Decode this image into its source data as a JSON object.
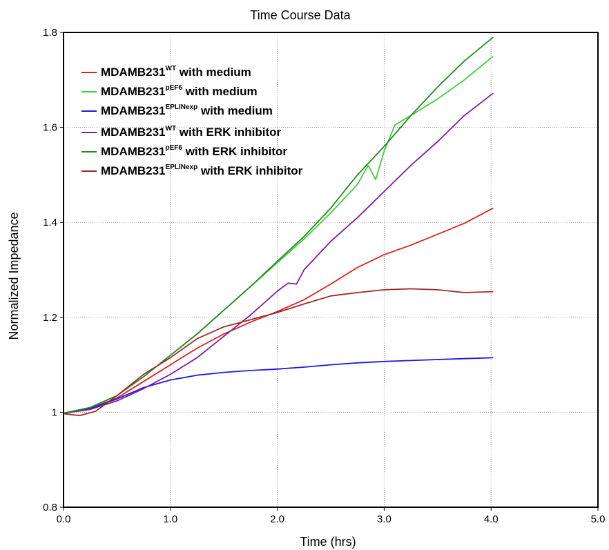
{
  "chart_data": {
    "type": "line",
    "title": "Time Course Data",
    "xlabel": "Time (hrs)",
    "ylabel": "Normalized Impedance",
    "xlim": [
      0.0,
      5.0
    ],
    "ylim": [
      0.8,
      1.8
    ],
    "xticks": [
      0.0,
      1.0,
      2.0,
      3.0,
      4.0,
      5.0
    ],
    "xtick_labels": [
      "0.0",
      "1.0",
      "2.0",
      "3.0",
      "4.0",
      "5.0"
    ],
    "yticks": [
      0.8,
      1.0,
      1.2,
      1.4,
      1.6,
      1.8
    ],
    "ytick_labels": [
      "0.8",
      "1",
      "1.2",
      "1.4",
      "1.6",
      "1.8"
    ],
    "grid": true,
    "legend_position": "top-left",
    "series": [
      {
        "name": "MDAMB231WT with medium",
        "legend": {
          "base": "MDAMB231",
          "sup": "WT",
          "rest": " with medium"
        },
        "color": "#e02020",
        "x": [
          0.0,
          0.25,
          0.5,
          0.75,
          1.0,
          1.25,
          1.5,
          1.75,
          2.0,
          2.25,
          2.5,
          2.75,
          3.0,
          3.25,
          3.5,
          3.75,
          4.02
        ],
        "y": [
          0.997,
          1.008,
          1.03,
          1.065,
          1.1,
          1.135,
          1.165,
          1.19,
          1.212,
          1.237,
          1.27,
          1.305,
          1.332,
          1.352,
          1.375,
          1.398,
          1.43
        ]
      },
      {
        "name": "MDAMB231pEF6 with medium",
        "legend": {
          "base": "MDAMB231",
          "sup": "pEF6",
          "rest": " with medium"
        },
        "color": "#3dce3d",
        "x": [
          0.0,
          0.25,
          0.5,
          0.75,
          1.0,
          1.25,
          1.5,
          1.75,
          2.0,
          2.25,
          2.5,
          2.75,
          2.85,
          2.92,
          3.0,
          3.1,
          3.25,
          3.5,
          3.75,
          4.02
        ],
        "y": [
          0.998,
          1.01,
          1.035,
          1.075,
          1.12,
          1.165,
          1.215,
          1.265,
          1.315,
          1.365,
          1.42,
          1.48,
          1.52,
          1.49,
          1.55,
          1.605,
          1.625,
          1.66,
          1.7,
          1.75
        ]
      },
      {
        "name": "MDAMB231EPLINexp with medium",
        "legend": {
          "base": "MDAMB231",
          "sup": "EPLINexp",
          "rest": " with medium"
        },
        "color": "#1a1ae0",
        "x": [
          0.0,
          0.25,
          0.5,
          0.75,
          1.0,
          1.25,
          1.5,
          1.75,
          2.0,
          2.25,
          2.5,
          2.75,
          3.0,
          3.25,
          3.5,
          3.75,
          4.02
        ],
        "y": [
          0.998,
          1.008,
          1.028,
          1.052,
          1.068,
          1.078,
          1.084,
          1.088,
          1.091,
          1.095,
          1.1,
          1.104,
          1.107,
          1.109,
          1.111,
          1.113,
          1.115
        ]
      },
      {
        "name": "MDAMB231WT with ERK inhibitor",
        "legend": {
          "base": "MDAMB231",
          "sup": "WT",
          "rest": " with ERK inhibitor"
        },
        "color": "#7f1c9a",
        "x": [
          0.0,
          0.25,
          0.5,
          0.75,
          1.0,
          1.25,
          1.5,
          1.75,
          2.0,
          2.1,
          2.18,
          2.25,
          2.5,
          2.75,
          3.0,
          3.25,
          3.5,
          3.75,
          4.02
        ],
        "y": [
          0.998,
          1.006,
          1.024,
          1.05,
          1.08,
          1.115,
          1.16,
          1.205,
          1.255,
          1.272,
          1.27,
          1.3,
          1.36,
          1.41,
          1.465,
          1.52,
          1.57,
          1.625,
          1.672
        ]
      },
      {
        "name": "MDAMB231pEF6 with ERK inhibitor",
        "legend": {
          "base": "MDAMB231",
          "sup": "pEF6",
          "rest": " with ERK inhibitor"
        },
        "color": "#1e8c1e",
        "x": [
          0.0,
          0.25,
          0.5,
          0.75,
          1.0,
          1.25,
          1.5,
          1.75,
          2.0,
          2.25,
          2.5,
          2.75,
          3.0,
          3.25,
          3.5,
          3.75,
          4.02
        ],
        "y": [
          0.998,
          1.01,
          1.035,
          1.075,
          1.12,
          1.165,
          1.215,
          1.265,
          1.318,
          1.37,
          1.43,
          1.5,
          1.56,
          1.625,
          1.685,
          1.74,
          1.79
        ]
      },
      {
        "name": "MDAMB231EPLINexp with ERK inhibitor",
        "legend": {
          "base": "MDAMB231",
          "sup": "EPLINexp",
          "rest": " with ERK inhibitor"
        },
        "color": "#a02828",
        "x": [
          0.0,
          0.15,
          0.3,
          0.5,
          0.75,
          1.0,
          1.25,
          1.5,
          1.75,
          2.0,
          2.25,
          2.5,
          2.75,
          3.0,
          3.25,
          3.5,
          3.75,
          4.02
        ],
        "y": [
          0.997,
          0.993,
          1.002,
          1.035,
          1.08,
          1.115,
          1.155,
          1.18,
          1.195,
          1.21,
          1.228,
          1.245,
          1.252,
          1.258,
          1.26,
          1.258,
          1.252,
          1.254
        ]
      }
    ]
  }
}
